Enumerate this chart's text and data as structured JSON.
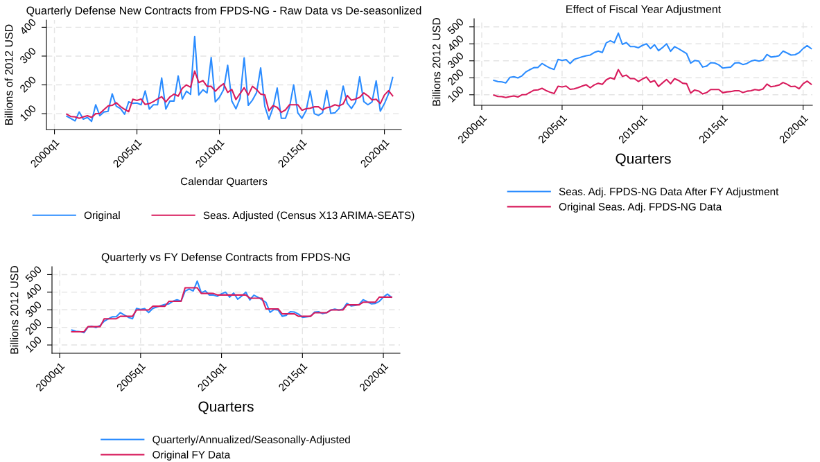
{
  "chart_data": [
    {
      "type": "line",
      "title": "Quarterly Defense New Contracts from FPDS-NG - Raw Data vs De-seasonlized",
      "xlabel": "Calendar Quarters",
      "ylabel": "Billions of 2012 USD",
      "categories": [
        "2000q1",
        null,
        null,
        null,
        null,
        null,
        null,
        null,
        null,
        null,
        null,
        null,
        null,
        null,
        null,
        null,
        null,
        null,
        null,
        null,
        "2005q1",
        null,
        null,
        null,
        null,
        null,
        null,
        null,
        null,
        null,
        null,
        null,
        null,
        null,
        null,
        null,
        null,
        null,
        null,
        null,
        "2010q1",
        null,
        null,
        null,
        null,
        null,
        null,
        null,
        null,
        null,
        null,
        null,
        null,
        null,
        null,
        null,
        null,
        null,
        null,
        null,
        "2015q1",
        null,
        null,
        null,
        null,
        null,
        null,
        null,
        null,
        null,
        null,
        null,
        null,
        null,
        null,
        null,
        null,
        null,
        null,
        null,
        "2020q1",
        null,
        null,
        null
      ],
      "series": [
        {
          "name": "Original",
          "color": "#2b8cff",
          "values": [
            null,
            null,
            null,
            91,
            83,
            75,
            106,
            81,
            87,
            73,
            131,
            93,
            106,
            108,
            169,
            126,
            118,
            98,
            141,
            136,
            137,
            131,
            179,
            116,
            131,
            131,
            224,
            116,
            144,
            144,
            231,
            151,
            178,
            167,
            368,
            165,
            183,
            172,
            295,
            141,
            157,
            183,
            268,
            144,
            117,
            153,
            294,
            129,
            147,
            173,
            259,
            126,
            81,
            121,
            189,
            84,
            84,
            124,
            200,
            103,
            84,
            110,
            179,
            100,
            94,
            103,
            181,
            101,
            103,
            118,
            196,
            136,
            118,
            140,
            228,
            142,
            131,
            141,
            214,
            109,
            135,
            169,
            226,
            null
          ]
        },
        {
          "name": "Seas. Adjusted (Census X13 ARIMA-SEATS)",
          "color": "#d81b5c",
          "values": [
            null,
            null,
            null,
            98,
            90,
            89,
            84,
            89,
            93,
            87,
            100,
            101,
            114,
            127,
            129,
            138,
            125,
            115,
            107,
            150,
            146,
            151,
            132,
            135,
            142,
            151,
            159,
            141,
            158,
            168,
            161,
            188,
            200,
            192,
            248,
            208,
            215,
            195,
            195,
            178,
            193,
            204,
            174,
            184,
            149,
            170,
            190,
            165,
            195,
            184,
            168,
            165,
            110,
            128,
            122,
            105,
            113,
            131,
            131,
            131,
            112,
            117,
            119,
            124,
            124,
            113,
            121,
            124,
            131,
            127,
            134,
            163,
            147,
            151,
            157,
            172,
            162,
            148,
            150,
            135,
            165,
            180,
            162,
            null
          ]
        }
      ],
      "ylim": [
        45,
        425
      ],
      "yticks": [
        100,
        200,
        300,
        400
      ],
      "grid": true,
      "legend": "bottom",
      "marker": "none",
      "line_style": "solid"
    },
    {
      "type": "line",
      "title": "Effect of Fiscal Year Adjustment",
      "xlabel": "Quarters",
      "ylabel": "Billions 2012 USD",
      "categories": [
        "2000q1",
        null,
        null,
        null,
        null,
        null,
        null,
        null,
        null,
        null,
        null,
        null,
        null,
        null,
        null,
        null,
        null,
        null,
        null,
        null,
        "2005q1",
        null,
        null,
        null,
        null,
        null,
        null,
        null,
        null,
        null,
        null,
        null,
        null,
        null,
        null,
        null,
        null,
        null,
        null,
        null,
        "2010q1",
        null,
        null,
        null,
        null,
        null,
        null,
        null,
        null,
        null,
        null,
        null,
        null,
        null,
        null,
        null,
        null,
        null,
        null,
        null,
        "2015q1",
        null,
        null,
        null,
        null,
        null,
        null,
        null,
        null,
        null,
        null,
        null,
        null,
        null,
        null,
        null,
        null,
        null,
        null,
        null,
        "2020q1",
        null,
        null,
        null
      ],
      "series": [
        {
          "name": "Seas. Adj. FPDS-NG Data After FY Adjustment",
          "color": "#2b8cff",
          "values": [
            null,
            null,
            null,
            185,
            178,
            176,
            170,
            202,
            206,
            199,
            211,
            235,
            248,
            260,
            261,
            284,
            270,
            257,
            249,
            308,
            302,
            307,
            284,
            308,
            316,
            324,
            330,
            334,
            349,
            357,
            349,
            406,
            418,
            407,
            463,
            397,
            407,
            384,
            384,
            377,
            391,
            400,
            372,
            395,
            360,
            378,
            400,
            356,
            383,
            371,
            357,
            342,
            286,
            302,
            298,
            263,
            269,
            289,
            287,
            276,
            257,
            260,
            263,
            287,
            289,
            278,
            284,
            298,
            304,
            298,
            304,
            337,
            322,
            325,
            330,
            357,
            346,
            334,
            336,
            348,
            372,
            389,
            372,
            null
          ]
        },
        {
          "name": "Original Seas. Adj. FPDS-NG Data",
          "color": "#d81b5c",
          "values": [
            null,
            null,
            null,
            98,
            90,
            89,
            84,
            89,
            93,
            87,
            100,
            101,
            114,
            127,
            129,
            138,
            125,
            115,
            107,
            150,
            146,
            151,
            132,
            135,
            142,
            151,
            159,
            141,
            158,
            168,
            161,
            188,
            200,
            192,
            248,
            208,
            215,
            195,
            195,
            178,
            193,
            204,
            174,
            184,
            149,
            170,
            190,
            165,
            195,
            184,
            168,
            165,
            110,
            128,
            122,
            105,
            113,
            131,
            131,
            131,
            112,
            117,
            119,
            124,
            124,
            113,
            121,
            124,
            131,
            127,
            134,
            163,
            147,
            151,
            157,
            172,
            162,
            148,
            150,
            135,
            165,
            180,
            162,
            null
          ]
        }
      ],
      "ylim": [
        38,
        548
      ],
      "yticks": [
        100,
        200,
        300,
        400,
        500
      ],
      "grid": true,
      "legend": "bottom",
      "marker": "none",
      "line_style": "solid"
    },
    {
      "type": "line",
      "title": "Quarterly vs FY Defense Contracts from FPDS-NG",
      "xlabel": "Quarters",
      "ylabel": "Billions 2012 USD",
      "categories": [
        "2000q1",
        null,
        null,
        null,
        null,
        null,
        null,
        null,
        null,
        null,
        null,
        null,
        null,
        null,
        null,
        null,
        null,
        null,
        null,
        null,
        "2005q1",
        null,
        null,
        null,
        null,
        null,
        null,
        null,
        null,
        null,
        null,
        null,
        null,
        null,
        null,
        null,
        null,
        null,
        null,
        null,
        "2010q1",
        null,
        null,
        null,
        null,
        null,
        null,
        null,
        null,
        null,
        null,
        null,
        null,
        null,
        null,
        null,
        null,
        null,
        null,
        null,
        "2015q1",
        null,
        null,
        null,
        null,
        null,
        null,
        null,
        null,
        null,
        null,
        null,
        null,
        null,
        null,
        null,
        null,
        null,
        null,
        null,
        "2020q1",
        null,
        null,
        null
      ],
      "series": [
        {
          "name": "Quarterly/Annualized/Seasonally-Adjusted",
          "color": "#2b8cff",
          "values": [
            null,
            null,
            null,
            185,
            178,
            176,
            170,
            202,
            206,
            199,
            211,
            235,
            248,
            260,
            261,
            284,
            270,
            257,
            249,
            308,
            302,
            307,
            284,
            308,
            316,
            324,
            330,
            334,
            349,
            357,
            349,
            406,
            418,
            407,
            463,
            397,
            407,
            384,
            384,
            377,
            391,
            400,
            372,
            395,
            360,
            378,
            400,
            356,
            383,
            371,
            357,
            342,
            286,
            302,
            298,
            263,
            269,
            289,
            287,
            276,
            257,
            260,
            263,
            287,
            289,
            278,
            284,
            298,
            304,
            298,
            304,
            337,
            322,
            325,
            330,
            357,
            346,
            334,
            336,
            348,
            372,
            389,
            372,
            null
          ]
        },
        {
          "name": "Original FY Data",
          "color": "#d81b5c",
          "values": [
            null,
            null,
            null,
            175,
            175,
            175,
            175,
            204,
            204,
            204,
            204,
            249,
            249,
            249,
            249,
            263,
            263,
            263,
            263,
            299,
            299,
            299,
            299,
            320,
            320,
            320,
            320,
            348,
            348,
            348,
            348,
            425,
            425,
            425,
            425,
            393,
            393,
            393,
            393,
            384,
            384,
            384,
            384,
            384,
            384,
            384,
            384,
            366,
            366,
            366,
            366,
            305,
            305,
            305,
            305,
            277,
            277,
            277,
            277,
            263,
            263,
            263,
            263,
            283,
            283,
            283,
            283,
            299,
            299,
            299,
            299,
            328,
            328,
            328,
            328,
            343,
            343,
            343,
            343,
            372,
            372,
            372,
            372,
            null
          ]
        }
      ],
      "ylim": [
        53,
        545
      ],
      "yticks": [
        100,
        200,
        300,
        400,
        500
      ],
      "grid": true,
      "legend": "bottom",
      "marker": "none",
      "line_style": "solid"
    }
  ]
}
